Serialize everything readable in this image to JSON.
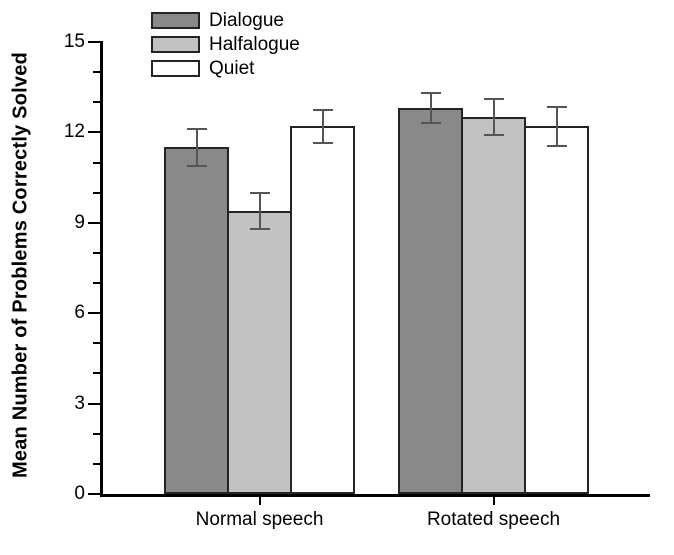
{
  "figure": {
    "background": "#ffffff"
  },
  "chart_data": {
    "type": "bar",
    "title": "",
    "categories": [
      "Normal speech",
      "Rotated speech"
    ],
    "series": [
      {
        "name": "Dialogue",
        "color": "#898989",
        "values": [
          11.5,
          12.8
        ],
        "errors": [
          0.6,
          0.5
        ]
      },
      {
        "name": "Halfalogue",
        "color": "#c2c2c2",
        "values": [
          9.4,
          12.5
        ],
        "errors": [
          0.6,
          0.6
        ]
      },
      {
        "name": "Quiet",
        "color": "#ffffff",
        "values": [
          12.2,
          12.2
        ],
        "errors": [
          0.55,
          0.65
        ]
      }
    ],
    "xlabel": "",
    "ylabel": "Mean Number of Problems Correctly Solved",
    "ylim": [
      0,
      15
    ],
    "y_major_tick": 3,
    "y_minor_tick": 1,
    "y_tick_labels": [
      "0",
      "3",
      "6",
      "9",
      "12",
      "15"
    ],
    "grid": "off",
    "legend_position": "top-left",
    "error_bars": true,
    "error_bar_color": "#555555",
    "bar_border_color": "#242424",
    "axis_color": "#000000"
  }
}
